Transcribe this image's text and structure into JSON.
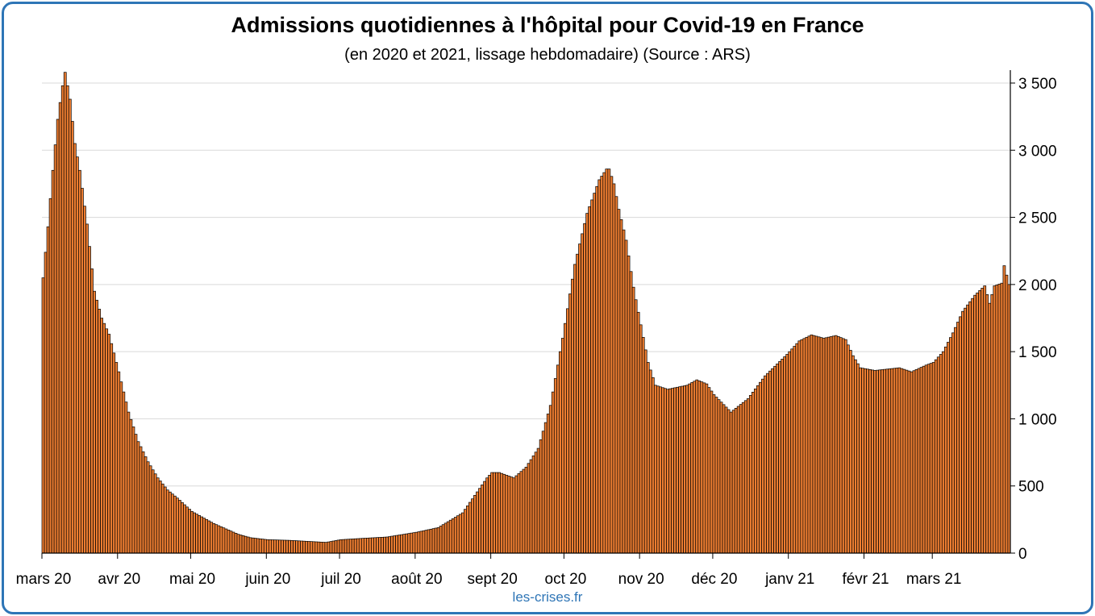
{
  "chart_data": {
    "type": "bar",
    "title": "Admissions quotidiennes à l'hôpital pour Covid-19 en France",
    "subtitle": "(en 2020 et 2021, lissage hebdomadaire) (Source : ARS)",
    "source_note": "les-crises.fr",
    "xlabel": "",
    "ylabel": "",
    "ylim": [
      0,
      3500
    ],
    "yticks": [
      {
        "value": 0,
        "label": "0"
      },
      {
        "value": 500,
        "label": "500"
      },
      {
        "value": 1000,
        "label": "1 000"
      },
      {
        "value": 1500,
        "label": "1 500"
      },
      {
        "value": 2000,
        "label": "2 000"
      },
      {
        "value": 2500,
        "label": "2 500"
      },
      {
        "value": 3000,
        "label": "3 000"
      },
      {
        "value": 3500,
        "label": "3 500"
      }
    ],
    "y_axis_side": "right",
    "grid": true,
    "legend": "none",
    "bar_color": "#ed7d31",
    "bar_edge_color": "#000000",
    "x_start": "2020-03-01",
    "x_ticks": [
      {
        "date": "2020-03-01",
        "label": "mars 20"
      },
      {
        "date": "2020-04-01",
        "label": "avr 20"
      },
      {
        "date": "2020-05-01",
        "label": "mai 20"
      },
      {
        "date": "2020-06-01",
        "label": "juin 20"
      },
      {
        "date": "2020-07-01",
        "label": "juil 20"
      },
      {
        "date": "2020-08-01",
        "label": "août 20"
      },
      {
        "date": "2020-09-01",
        "label": "sept 20"
      },
      {
        "date": "2020-10-01",
        "label": "oct 20"
      },
      {
        "date": "2020-11-01",
        "label": "nov 20"
      },
      {
        "date": "2020-12-01",
        "label": "déc 20"
      },
      {
        "date": "2021-01-01",
        "label": "janv 21"
      },
      {
        "date": "2021-02-01",
        "label": "févr 21"
      },
      {
        "date": "2021-03-01",
        "label": "mars 21"
      }
    ],
    "keypoints": [
      [
        "2020-03-01",
        2050
      ],
      [
        "2020-03-03",
        2430
      ],
      [
        "2020-03-05",
        2850
      ],
      [
        "2020-03-07",
        3230
      ],
      [
        "2020-03-09",
        3480
      ],
      [
        "2020-03-10",
        3580
      ],
      [
        "2020-03-12",
        3380
      ],
      [
        "2020-03-14",
        3050
      ],
      [
        "2020-03-16",
        2850
      ],
      [
        "2020-03-19",
        2450
      ],
      [
        "2020-03-22",
        1950
      ],
      [
        "2020-03-25",
        1750
      ],
      [
        "2020-03-28",
        1630
      ],
      [
        "2020-04-01",
        1350
      ],
      [
        "2020-04-05",
        1050
      ],
      [
        "2020-04-09",
        830
      ],
      [
        "2020-04-13",
        680
      ],
      [
        "2020-04-17",
        560
      ],
      [
        "2020-04-21",
        470
      ],
      [
        "2020-04-25",
        410
      ],
      [
        "2020-05-01",
        310
      ],
      [
        "2020-05-05",
        270
      ],
      [
        "2020-05-10",
        220
      ],
      [
        "2020-05-15",
        180
      ],
      [
        "2020-05-20",
        140
      ],
      [
        "2020-05-25",
        115
      ],
      [
        "2020-06-01",
        100
      ],
      [
        "2020-06-10",
        95
      ],
      [
        "2020-06-20",
        85
      ],
      [
        "2020-06-25",
        80
      ],
      [
        "2020-07-01",
        100
      ],
      [
        "2020-07-10",
        110
      ],
      [
        "2020-07-20",
        120
      ],
      [
        "2020-08-01",
        155
      ],
      [
        "2020-08-10",
        190
      ],
      [
        "2020-08-20",
        300
      ],
      [
        "2020-08-25",
        430
      ],
      [
        "2020-08-30",
        560
      ],
      [
        "2020-09-01",
        600
      ],
      [
        "2020-09-04",
        600
      ],
      [
        "2020-09-07",
        580
      ],
      [
        "2020-09-10",
        560
      ],
      [
        "2020-09-15",
        640
      ],
      [
        "2020-09-20",
        780
      ],
      [
        "2020-09-25",
        1100
      ],
      [
        "2020-09-30",
        1600
      ],
      [
        "2020-10-05",
        2150
      ],
      [
        "2020-10-10",
        2530
      ],
      [
        "2020-10-15",
        2780
      ],
      [
        "2020-10-18",
        2860
      ],
      [
        "2020-10-19",
        2860
      ],
      [
        "2020-10-21",
        2750
      ],
      [
        "2020-10-23",
        2560
      ],
      [
        "2020-10-26",
        2330
      ],
      [
        "2020-10-29",
        1980
      ],
      [
        "2020-11-01",
        1700
      ],
      [
        "2020-11-04",
        1420
      ],
      [
        "2020-11-07",
        1250
      ],
      [
        "2020-11-12",
        1220
      ],
      [
        "2020-11-20",
        1250
      ],
      [
        "2020-11-24",
        1290
      ],
      [
        "2020-11-28",
        1260
      ],
      [
        "2020-12-01",
        1180
      ],
      [
        "2020-12-08",
        1050
      ],
      [
        "2020-12-15",
        1150
      ],
      [
        "2020-12-22",
        1320
      ],
      [
        "2020-12-31",
        1480
      ],
      [
        "2021-01-05",
        1580
      ],
      [
        "2021-01-10",
        1625
      ],
      [
        "2021-01-15",
        1600
      ],
      [
        "2021-01-20",
        1620
      ],
      [
        "2021-01-24",
        1590
      ],
      [
        "2021-01-27",
        1470
      ],
      [
        "2021-01-30",
        1380
      ],
      [
        "2021-02-05",
        1360
      ],
      [
        "2021-02-10",
        1370
      ],
      [
        "2021-02-15",
        1380
      ],
      [
        "2021-02-20",
        1350
      ],
      [
        "2021-02-26",
        1400
      ],
      [
        "2021-03-01",
        1420
      ],
      [
        "2021-03-05",
        1500
      ],
      [
        "2021-03-09",
        1640
      ],
      [
        "2021-03-13",
        1800
      ],
      [
        "2021-03-18",
        1920
      ],
      [
        "2021-03-22",
        1990
      ],
      [
        "2021-03-24",
        1860
      ],
      [
        "2021-03-26",
        1990
      ],
      [
        "2021-03-29",
        2010
      ],
      [
        "2021-03-30",
        2140
      ],
      [
        "2021-04-01",
        2000
      ]
    ]
  }
}
